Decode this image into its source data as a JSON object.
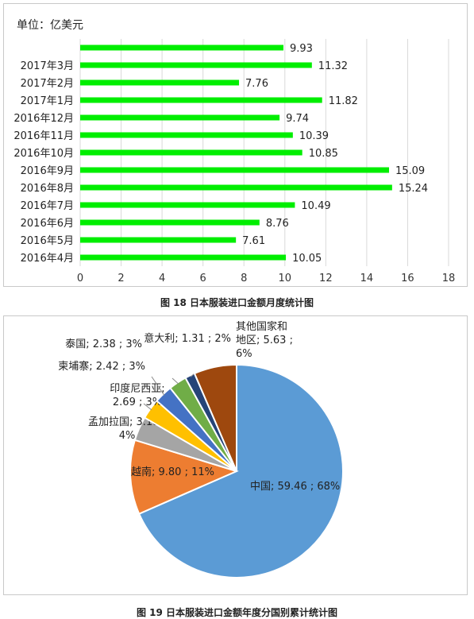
{
  "bar_chart": {
    "unit_label": "单位：亿美元",
    "caption": "图 18  日本服装进口金额月度统计图",
    "bar_color": "#00ee00"
  },
  "pie_chart": {
    "caption": "图 19  日本服装进口金额年度分国别累计统计图"
  },
  "chart_data": [
    {
      "type": "bar",
      "orientation": "horizontal",
      "categories": [
        "",
        "2017年3月",
        "2017年2月",
        "2017年1月",
        "2016年12月",
        "2016年11月",
        "2016年10月",
        "2016年9月",
        "2016年8月",
        "2016年7月",
        "2016年6月",
        "2016年5月",
        "2016年4月"
      ],
      "values": [
        9.93,
        11.32,
        7.76,
        11.82,
        9.74,
        10.39,
        10.85,
        15.09,
        15.24,
        10.49,
        8.76,
        7.61,
        10.05
      ],
      "value_labels": [
        "9.93",
        "11.32",
        "7.76",
        "11.82",
        "9.74",
        "10.39",
        "10.85",
        "15.09",
        "15.24",
        "10.49",
        "8.76",
        "7.61",
        "10.05"
      ],
      "xlim": [
        0,
        18
      ],
      "xticks": [
        "0",
        "2",
        "4",
        "6",
        "8",
        "10",
        "12",
        "14",
        "16",
        "18"
      ],
      "grid": true
    },
    {
      "type": "pie",
      "start_angle_deg": 0,
      "slices": [
        {
          "value": 59.46,
          "color": "#5b9bd5",
          "label_lines": [
            "中国; 59.46 ; 68%"
          ]
        },
        {
          "value": 9.8,
          "color": "#ed7d31",
          "label_lines": [
            "越南; 9.80 ; 11%"
          ]
        },
        {
          "value": 3.18,
          "color": "#a5a5a5",
          "label_lines": [
            "孟加拉国; 3.18 ;",
            "4%"
          ]
        },
        {
          "value": 2.69,
          "color": "#ffc000",
          "label_lines": [
            "印度尼西亚;",
            "2.69 ; 3%"
          ]
        },
        {
          "value": 2.42,
          "color": "#4472c4",
          "label_lines": [
            "柬埔寨; 2.42 ; 3%"
          ]
        },
        {
          "value": 2.38,
          "color": "#70ad47",
          "label_lines": [
            "泰国; 2.38 ; 3%"
          ]
        },
        {
          "value": 1.31,
          "color": "#264478",
          "label_lines": [
            "意大利; 1.31 ; 2%"
          ]
        },
        {
          "value": 5.63,
          "color": "#9e480e",
          "label_lines": [
            "其他国家和",
            "地区; 5.63 ;",
            "6%"
          ]
        }
      ]
    }
  ]
}
